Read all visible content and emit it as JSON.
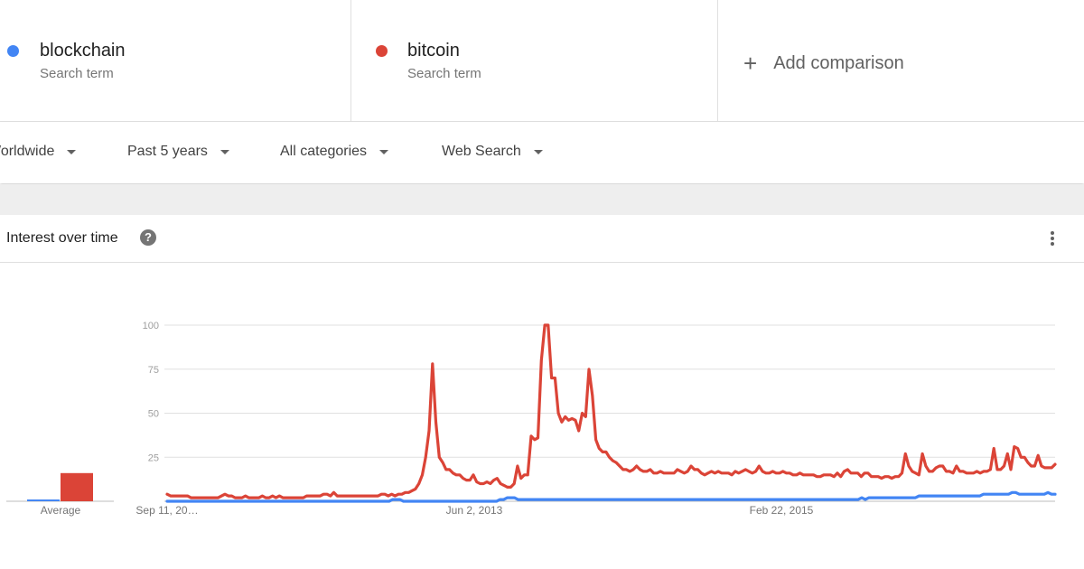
{
  "terms": [
    {
      "name": "blockchain",
      "type": "Search term",
      "color": "#4285f4"
    },
    {
      "name": "bitcoin",
      "type": "Search term",
      "color": "#db4437"
    }
  ],
  "add_comparison": {
    "icon": "plus-icon",
    "label": "Add comparison"
  },
  "filters": [
    {
      "label": "Worldwide"
    },
    {
      "label": "Past 5 years"
    },
    {
      "label": "All categories"
    },
    {
      "label": "Web Search"
    }
  ],
  "card": {
    "title": "Interest over time",
    "help_icon": "help-icon",
    "help_symbol": "?",
    "more_icon": "more-vert-icon"
  },
  "chart_data": {
    "type": "line",
    "y_ticks": [
      "100",
      "75",
      "50",
      "25"
    ],
    "ylim": [
      0,
      100
    ],
    "grid": true,
    "x_tick_labels": [
      "Sep 11, 20…",
      "Jun 2, 2013",
      "Feb 22, 2015"
    ],
    "average_label": "Average",
    "averages": {
      "blockchain": 1,
      "bitcoin": 16
    },
    "series": [
      {
        "name": "blockchain",
        "color": "#4285f4",
        "values": [
          0,
          0,
          0,
          0,
          0,
          0,
          0,
          0,
          0,
          0,
          0,
          0,
          0,
          0,
          0,
          0,
          0,
          0,
          0,
          0,
          0,
          0,
          0,
          0,
          0,
          0,
          0,
          0,
          0,
          0,
          0,
          0,
          0,
          0,
          0,
          0,
          0,
          0,
          0,
          0,
          0,
          0,
          0,
          0,
          0,
          0,
          0,
          0,
          0,
          0,
          0,
          0,
          0,
          0,
          0,
          0,
          0,
          0,
          0,
          0,
          0,
          0,
          0,
          1,
          1,
          1,
          0,
          0,
          0,
          0,
          0,
          0,
          0,
          0,
          0,
          0,
          0,
          0,
          0,
          0,
          0,
          0,
          0,
          0,
          0,
          0,
          0,
          0,
          0,
          0,
          0,
          0,
          0,
          1,
          1,
          2,
          2,
          2,
          1,
          1,
          1,
          1,
          1,
          1,
          1,
          1,
          1,
          1,
          1,
          1,
          1,
          1,
          1,
          1,
          1,
          1,
          1,
          1,
          1,
          1,
          1,
          1,
          1,
          1,
          1,
          1,
          1,
          1,
          1,
          1,
          1,
          1,
          1,
          1,
          1,
          1,
          1,
          1,
          1,
          1,
          1,
          1,
          1,
          1,
          1,
          1,
          1,
          1,
          1,
          1,
          1,
          1,
          1,
          1,
          1,
          1,
          1,
          1,
          1,
          1,
          1,
          1,
          1,
          1,
          1,
          1,
          1,
          1,
          1,
          1,
          1,
          1,
          1,
          1,
          1,
          1,
          1,
          1,
          1,
          1,
          1,
          1,
          1,
          1,
          1,
          1,
          1,
          1,
          1,
          1,
          1,
          1,
          1,
          1,
          2,
          1,
          2,
          2,
          2,
          2,
          2,
          2,
          2,
          2,
          2,
          2,
          2,
          2,
          2,
          2,
          3,
          3,
          3,
          3,
          3,
          3,
          3,
          3,
          3,
          3,
          3,
          3,
          3,
          3,
          3,
          3,
          3,
          3,
          4,
          4,
          4,
          4,
          4,
          4,
          4,
          4,
          5,
          5,
          4,
          4,
          4,
          4,
          4,
          4,
          4,
          4,
          5,
          4,
          4
        ]
      },
      {
        "name": "bitcoin",
        "color": "#db4437",
        "values": [
          4,
          3,
          3,
          3,
          3,
          3,
          3,
          2,
          2,
          2,
          2,
          2,
          2,
          2,
          2,
          2,
          3,
          4,
          3,
          3,
          2,
          2,
          2,
          3,
          2,
          2,
          2,
          2,
          3,
          2,
          2,
          3,
          2,
          3,
          2,
          2,
          2,
          2,
          2,
          2,
          2,
          3,
          3,
          3,
          3,
          3,
          4,
          4,
          3,
          5,
          3,
          3,
          3,
          3,
          3,
          3,
          3,
          3,
          3,
          3,
          3,
          3,
          3,
          4,
          4,
          3,
          4,
          3,
          4,
          4,
          5,
          5,
          6,
          7,
          10,
          15,
          25,
          40,
          78,
          45,
          25,
          22,
          18,
          18,
          16,
          15,
          15,
          13,
          12,
          12,
          15,
          11,
          10,
          10,
          11,
          10,
          12,
          13,
          10,
          9,
          8,
          8,
          10,
          20,
          13,
          15,
          15,
          37,
          35,
          36,
          80,
          100,
          100,
          70,
          70,
          50,
          45,
          48,
          46,
          47,
          46,
          40,
          50,
          48,
          75,
          60,
          35,
          30,
          28,
          28,
          25,
          23,
          22,
          20,
          18,
          18,
          17,
          18,
          20,
          18,
          17,
          17,
          18,
          16,
          16,
          17,
          16,
          16,
          16,
          16,
          18,
          17,
          16,
          17,
          20,
          18,
          18,
          16,
          15,
          16,
          17,
          16,
          17,
          16,
          16,
          16,
          15,
          17,
          16,
          17,
          18,
          17,
          16,
          17,
          20,
          17,
          16,
          16,
          17,
          16,
          16,
          17,
          16,
          16,
          15,
          15,
          16,
          15,
          15,
          15,
          15,
          14,
          14,
          15,
          15,
          15,
          14,
          16,
          14,
          17,
          18,
          16,
          16,
          16,
          14,
          16,
          16,
          14,
          14,
          14,
          13,
          14,
          14,
          13,
          14,
          14,
          16,
          27,
          20,
          17,
          16,
          15,
          27,
          20,
          17,
          17,
          19,
          20,
          20,
          17,
          17,
          16,
          20,
          17,
          17,
          16,
          16,
          16,
          17,
          16,
          17,
          17,
          18,
          30,
          18,
          18,
          20,
          27,
          18,
          31,
          30,
          25,
          25,
          22,
          20,
          20,
          26,
          20,
          19,
          19,
          19,
          21
        ]
      }
    ]
  }
}
